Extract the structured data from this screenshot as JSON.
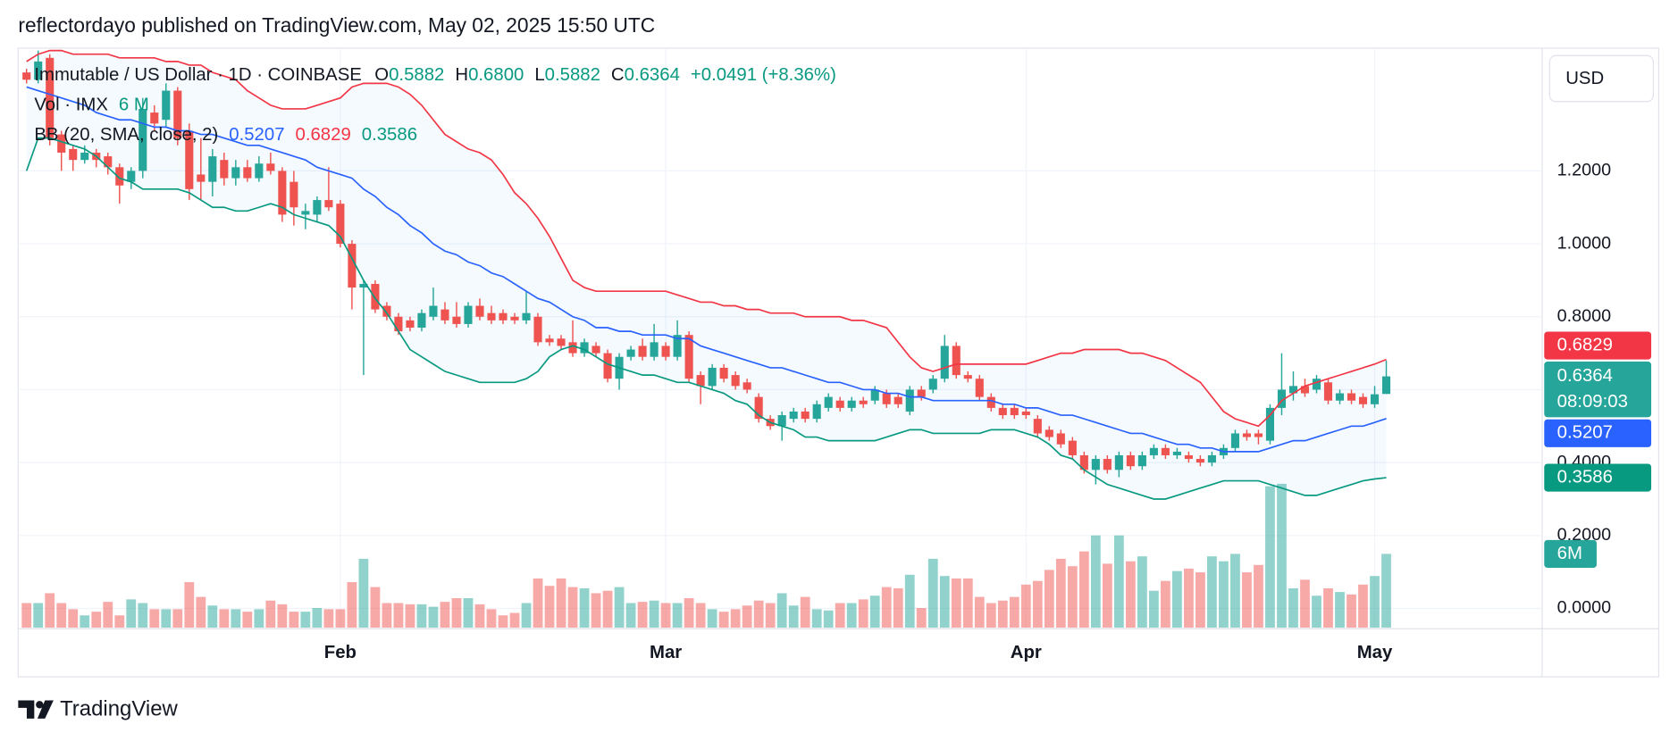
{
  "header": {
    "published": "reflectordayo published on TradingView.com, May 02, 2025 15:50 UTC"
  },
  "chart_data": {
    "type": "candlestick",
    "title": "Immutable / US Dollar · 1D · COINBASE",
    "ohlc_legend": [
      {
        "key": "O",
        "text": "0.5882"
      },
      {
        "key": "H",
        "text": "0.6800"
      },
      {
        "key": "L",
        "text": "0.5882"
      },
      {
        "key": "C",
        "text": "0.6364"
      }
    ],
    "change": "+0.0491 (+8.36%)",
    "currency": "USD",
    "countdown": "08:09:03",
    "up_color": "#26a69a",
    "down_color": "#ef5350",
    "legend_value_color": "#089981",
    "grid": true,
    "ylim": [
      -0.0557,
      1.5367
    ],
    "yticks": [
      {
        "value": 0,
        "label": "0.0000"
      },
      {
        "value": 0.2,
        "label": "0.2000"
      },
      {
        "value": 0.4,
        "label": "0.4000"
      },
      {
        "value": 0.6,
        "label": "0.6000"
      },
      {
        "value": 0.8,
        "label": "0.8000"
      },
      {
        "value": 1.0,
        "label": "1.0000"
      },
      {
        "value": 1.2,
        "label": "1.2000"
      }
    ],
    "categories": [
      null,
      null,
      null,
      null,
      null,
      null,
      null,
      null,
      null,
      null,
      null,
      null,
      null,
      null,
      null,
      null,
      null,
      null,
      null,
      null,
      null,
      null,
      null,
      null,
      null,
      null,
      null,
      "Feb",
      null,
      null,
      null,
      null,
      null,
      null,
      null,
      null,
      null,
      null,
      null,
      null,
      null,
      null,
      null,
      null,
      null,
      null,
      null,
      null,
      null,
      null,
      null,
      null,
      null,
      null,
      null,
      "Mar",
      null,
      null,
      null,
      null,
      null,
      null,
      null,
      null,
      null,
      null,
      null,
      null,
      null,
      null,
      null,
      null,
      null,
      null,
      null,
      null,
      null,
      null,
      null,
      null,
      null,
      null,
      null,
      null,
      null,
      null,
      "Apr",
      null,
      null,
      null,
      null,
      null,
      null,
      null,
      null,
      null,
      null,
      null,
      null,
      null,
      null,
      null,
      null,
      null,
      null,
      null,
      null,
      null,
      null,
      null,
      null,
      null,
      null,
      null,
      null,
      null,
      "May",
      null
    ],
    "open": [
      1.47,
      1.45,
      1.51,
      1.3,
      1.26,
      1.23,
      1.25,
      1.24,
      1.21,
      1.17,
      1.2,
      1.36,
      1.34,
      1.42,
      1.31,
      1.19,
      1.17,
      1.23,
      1.18,
      1.21,
      1.18,
      1.22,
      1.2,
      1.17,
      1.08,
      1.08,
      1.12,
      1.11,
      1.0,
      0.88,
      0.89,
      0.83,
      0.8,
      0.79,
      0.77,
      0.8,
      0.82,
      0.8,
      0.78,
      0.83,
      0.81,
      0.81,
      0.8,
      0.79,
      0.8,
      0.74,
      0.74,
      0.73,
      0.7,
      0.72,
      0.7,
      0.63,
      0.69,
      0.72,
      0.69,
      0.72,
      0.69,
      0.75,
      0.64,
      0.61,
      0.66,
      0.64,
      0.62,
      0.58,
      0.52,
      0.5,
      0.52,
      0.54,
      0.52,
      0.55,
      0.57,
      0.55,
      0.57,
      0.57,
      0.59,
      0.58,
      0.54,
      0.6,
      0.6,
      0.63,
      0.72,
      0.64,
      0.63,
      0.58,
      0.55,
      0.55,
      0.54,
      0.52,
      0.49,
      0.48,
      0.46,
      0.42,
      0.38,
      0.41,
      0.38,
      0.42,
      0.39,
      0.42,
      0.44,
      0.42,
      0.42,
      0.41,
      0.4,
      0.42,
      0.44,
      0.48,
      0.48,
      0.46,
      0.55,
      0.59,
      0.61,
      0.6,
      0.62,
      0.57,
      0.59,
      0.58,
      0.56,
      0.5882
    ],
    "high": [
      1.48,
      1.53,
      1.52,
      1.31,
      1.27,
      1.27,
      1.26,
      1.25,
      1.22,
      1.21,
      1.4,
      1.38,
      1.44,
      1.43,
      1.33,
      1.29,
      1.26,
      1.25,
      1.23,
      1.23,
      1.24,
      1.25,
      1.21,
      1.2,
      1.11,
      1.13,
      1.21,
      1.12,
      1.01,
      0.9,
      0.9,
      0.84,
      0.81,
      0.8,
      0.82,
      0.88,
      0.84,
      0.84,
      0.84,
      0.85,
      0.83,
      0.82,
      0.81,
      0.87,
      0.81,
      0.75,
      0.75,
      0.79,
      0.74,
      0.73,
      0.71,
      0.7,
      0.72,
      0.74,
      0.78,
      0.73,
      0.79,
      0.76,
      0.65,
      0.67,
      0.67,
      0.65,
      0.63,
      0.59,
      0.53,
      0.54,
      0.55,
      0.55,
      0.57,
      0.59,
      0.58,
      0.58,
      0.58,
      0.61,
      0.6,
      0.59,
      0.61,
      0.61,
      0.64,
      0.75,
      0.73,
      0.65,
      0.64,
      0.59,
      0.56,
      0.56,
      0.55,
      0.53,
      0.5,
      0.49,
      0.47,
      0.43,
      0.42,
      0.42,
      0.43,
      0.43,
      0.43,
      0.45,
      0.45,
      0.44,
      0.43,
      0.42,
      0.43,
      0.45,
      0.49,
      0.49,
      0.49,
      0.56,
      0.7,
      0.65,
      0.63,
      0.64,
      0.63,
      0.6,
      0.6,
      0.59,
      0.61,
      0.68
    ],
    "low": [
      1.44,
      1.44,
      1.27,
      1.2,
      1.2,
      1.22,
      1.21,
      1.19,
      1.11,
      1.15,
      1.18,
      1.31,
      1.32,
      1.27,
      1.12,
      1.12,
      1.13,
      1.16,
      1.16,
      1.17,
      1.17,
      1.19,
      1.06,
      1.05,
      1.04,
      1.06,
      1.09,
      0.99,
      0.82,
      0.64,
      0.81,
      0.79,
      0.75,
      0.76,
      0.76,
      0.79,
      0.78,
      0.77,
      0.77,
      0.79,
      0.78,
      0.78,
      0.78,
      0.78,
      0.72,
      0.72,
      0.71,
      0.69,
      0.69,
      0.69,
      0.62,
      0.6,
      0.68,
      0.68,
      0.68,
      0.68,
      0.68,
      0.62,
      0.56,
      0.6,
      0.62,
      0.6,
      0.59,
      0.51,
      0.49,
      0.46,
      0.51,
      0.51,
      0.51,
      0.54,
      0.54,
      0.54,
      0.55,
      0.56,
      0.55,
      0.55,
      0.53,
      0.57,
      0.59,
      0.62,
      0.63,
      0.62,
      0.57,
      0.54,
      0.52,
      0.52,
      0.52,
      0.47,
      0.46,
      0.44,
      0.41,
      0.37,
      0.34,
      0.37,
      0.36,
      0.38,
      0.38,
      0.41,
      0.41,
      0.41,
      0.4,
      0.39,
      0.39,
      0.41,
      0.43,
      0.46,
      0.45,
      0.45,
      0.53,
      0.57,
      0.58,
      0.59,
      0.56,
      0.56,
      0.56,
      0.55,
      0.55,
      0.5882
    ],
    "close": [
      1.45,
      1.5,
      1.29,
      1.25,
      1.23,
      1.25,
      1.23,
      1.21,
      1.16,
      1.2,
      1.37,
      1.33,
      1.42,
      1.29,
      1.15,
      1.17,
      1.24,
      1.18,
      1.21,
      1.18,
      1.22,
      1.2,
      1.08,
      1.1,
      1.09,
      1.12,
      1.1,
      1.0,
      0.88,
      0.89,
      0.82,
      0.8,
      0.76,
      0.77,
      0.81,
      0.83,
      0.79,
      0.78,
      0.83,
      0.8,
      0.79,
      0.79,
      0.79,
      0.81,
      0.73,
      0.73,
      0.72,
      0.7,
      0.73,
      0.7,
      0.63,
      0.69,
      0.71,
      0.69,
      0.73,
      0.69,
      0.75,
      0.63,
      0.61,
      0.66,
      0.63,
      0.61,
      0.6,
      0.52,
      0.5,
      0.53,
      0.54,
      0.52,
      0.56,
      0.58,
      0.55,
      0.57,
      0.56,
      0.6,
      0.56,
      0.56,
      0.6,
      0.58,
      0.63,
      0.72,
      0.64,
      0.63,
      0.58,
      0.55,
      0.53,
      0.53,
      0.53,
      0.48,
      0.47,
      0.45,
      0.42,
      0.38,
      0.41,
      0.38,
      0.42,
      0.39,
      0.42,
      0.44,
      0.42,
      0.43,
      0.41,
      0.4,
      0.42,
      0.44,
      0.48,
      0.47,
      0.47,
      0.55,
      0.6,
      0.61,
      0.59,
      0.63,
      0.57,
      0.59,
      0.57,
      0.56,
      0.5873,
      0.6364
    ],
    "volume": {
      "name": "Vol · IMX",
      "legend_value": "6 M",
      "badge": "6M",
      "values": [
        2.0,
        2.0,
        2.8,
        2.0,
        1.5,
        1.0,
        1.3,
        2.1,
        1.0,
        2.3,
        2.0,
        1.5,
        1.5,
        1.5,
        3.7,
        2.5,
        1.8,
        1.5,
        1.5,
        1.3,
        1.5,
        2.2,
        1.9,
        1.3,
        1.3,
        1.6,
        1.5,
        1.5,
        3.7,
        5.6,
        3.3,
        2.0,
        2.0,
        1.9,
        1.9,
        1.7,
        2.1,
        2.4,
        2.4,
        1.9,
        1.5,
        1.0,
        1.2,
        2.0,
        4.0,
        3.4,
        4.0,
        3.3,
        3.2,
        2.8,
        3.0,
        3.3,
        2.0,
        2.1,
        2.2,
        2.0,
        2.0,
        2.4,
        2.0,
        1.5,
        1.3,
        1.5,
        1.8,
        2.2,
        2.0,
        2.8,
        1.8,
        2.5,
        1.5,
        1.4,
        2.0,
        2.0,
        2.3,
        2.6,
        3.3,
        3.2,
        4.3,
        1.6,
        5.6,
        4.2,
        4.0,
        4.0,
        2.5,
        2.0,
        2.2,
        2.5,
        3.5,
        3.8,
        4.7,
        5.6,
        5.0,
        6.2,
        7.5,
        5.2,
        7.5,
        5.4,
        5.8,
        3.0,
        3.8,
        4.6,
        4.8,
        4.5,
        5.8,
        5.4,
        6.0,
        4.5,
        5.1,
        11.5,
        11.7,
        3.2,
        3.9,
        2.6,
        3.2,
        2.9,
        2.7,
        3.5,
        4.2,
        6.0
      ]
    },
    "indicator": {
      "name": "BB (20, SMA, close, 2)",
      "fill": "#2196f3",
      "series": [
        {
          "color": "#2962ff",
          "last_label": "0.5207",
          "values": [
            1.43,
            1.42,
            1.41,
            1.4,
            1.39,
            1.38,
            1.36,
            1.35,
            1.34,
            1.34,
            1.33,
            1.32,
            1.32,
            1.31,
            1.31,
            1.3,
            1.3,
            1.29,
            1.28,
            1.27,
            1.27,
            1.26,
            1.25,
            1.24,
            1.23,
            1.21,
            1.2,
            1.19,
            1.18,
            1.15,
            1.13,
            1.1,
            1.08,
            1.05,
            1.03,
            1.0,
            0.98,
            0.97,
            0.95,
            0.94,
            0.92,
            0.91,
            0.89,
            0.87,
            0.85,
            0.84,
            0.82,
            0.8,
            0.79,
            0.77,
            0.77,
            0.76,
            0.76,
            0.75,
            0.75,
            0.75,
            0.74,
            0.74,
            0.72,
            0.71,
            0.7,
            0.69,
            0.68,
            0.67,
            0.66,
            0.66,
            0.65,
            0.64,
            0.63,
            0.62,
            0.62,
            0.61,
            0.6,
            0.6,
            0.59,
            0.59,
            0.58,
            0.58,
            0.57,
            0.57,
            0.57,
            0.57,
            0.57,
            0.57,
            0.56,
            0.56,
            0.55,
            0.55,
            0.54,
            0.53,
            0.53,
            0.52,
            0.51,
            0.5,
            0.49,
            0.48,
            0.48,
            0.47,
            0.46,
            0.45,
            0.45,
            0.44,
            0.44,
            0.43,
            0.43,
            0.43,
            0.43,
            0.44,
            0.45,
            0.46,
            0.46,
            0.47,
            0.48,
            0.49,
            0.5,
            0.5,
            0.51,
            0.5207
          ]
        },
        {
          "color": "#f23645",
          "last_label": "0.6829",
          "values": [
            1.5,
            1.52,
            1.53,
            1.53,
            1.52,
            1.52,
            1.52,
            1.52,
            1.51,
            1.51,
            1.51,
            1.51,
            1.5,
            1.5,
            1.49,
            1.49,
            1.47,
            1.46,
            1.45,
            1.42,
            1.4,
            1.38,
            1.37,
            1.37,
            1.37,
            1.38,
            1.39,
            1.4,
            1.43,
            1.44,
            1.44,
            1.44,
            1.43,
            1.41,
            1.38,
            1.34,
            1.3,
            1.28,
            1.26,
            1.25,
            1.23,
            1.19,
            1.14,
            1.11,
            1.07,
            1.02,
            0.96,
            0.9,
            0.88,
            0.87,
            0.87,
            0.87,
            0.87,
            0.87,
            0.87,
            0.87,
            0.86,
            0.85,
            0.84,
            0.84,
            0.83,
            0.83,
            0.82,
            0.82,
            0.81,
            0.81,
            0.81,
            0.8,
            0.8,
            0.8,
            0.8,
            0.79,
            0.79,
            0.78,
            0.77,
            0.73,
            0.69,
            0.66,
            0.65,
            0.66,
            0.67,
            0.67,
            0.67,
            0.67,
            0.67,
            0.67,
            0.67,
            0.68,
            0.69,
            0.7,
            0.7,
            0.71,
            0.71,
            0.71,
            0.71,
            0.7,
            0.7,
            0.69,
            0.68,
            0.66,
            0.64,
            0.62,
            0.58,
            0.54,
            0.52,
            0.51,
            0.5,
            0.53,
            0.57,
            0.59,
            0.61,
            0.62,
            0.63,
            0.64,
            0.65,
            0.66,
            0.67,
            0.6829
          ]
        },
        {
          "color": "#089981",
          "last_label": "0.3586",
          "values": [
            1.2,
            1.29,
            1.29,
            1.28,
            1.27,
            1.26,
            1.24,
            1.21,
            1.18,
            1.17,
            1.15,
            1.15,
            1.15,
            1.15,
            1.14,
            1.12,
            1.1,
            1.1,
            1.09,
            1.09,
            1.1,
            1.11,
            1.1,
            1.08,
            1.07,
            1.06,
            1.05,
            1.02,
            0.96,
            0.9,
            0.85,
            0.81,
            0.76,
            0.71,
            0.69,
            0.67,
            0.65,
            0.64,
            0.63,
            0.62,
            0.62,
            0.62,
            0.62,
            0.63,
            0.65,
            0.69,
            0.71,
            0.72,
            0.71,
            0.69,
            0.67,
            0.66,
            0.65,
            0.64,
            0.64,
            0.63,
            0.62,
            0.62,
            0.61,
            0.6,
            0.59,
            0.57,
            0.56,
            0.53,
            0.51,
            0.5,
            0.49,
            0.47,
            0.47,
            0.46,
            0.46,
            0.46,
            0.46,
            0.46,
            0.47,
            0.48,
            0.49,
            0.49,
            0.48,
            0.48,
            0.48,
            0.48,
            0.48,
            0.49,
            0.49,
            0.49,
            0.48,
            0.47,
            0.45,
            0.42,
            0.41,
            0.38,
            0.36,
            0.34,
            0.33,
            0.32,
            0.31,
            0.3,
            0.3,
            0.31,
            0.32,
            0.33,
            0.34,
            0.35,
            0.35,
            0.35,
            0.35,
            0.34,
            0.33,
            0.32,
            0.31,
            0.31,
            0.32,
            0.33,
            0.34,
            0.35,
            0.355,
            0.3586
          ]
        }
      ]
    }
  },
  "footer": {
    "brand": "TradingView"
  }
}
